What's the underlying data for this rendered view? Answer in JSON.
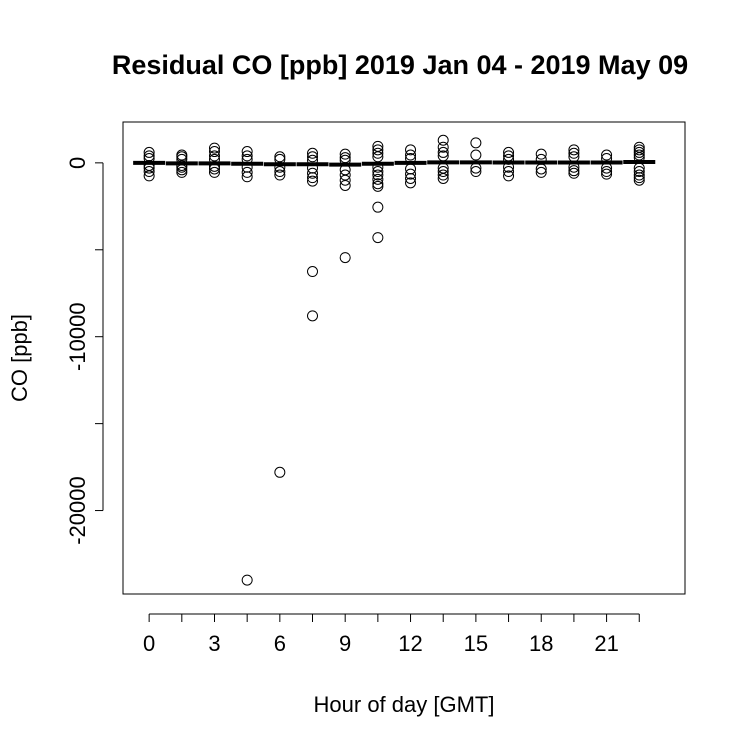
{
  "chart_data": {
    "type": "box",
    "title": "Residual CO [ppb] 2019 Jan 04 - 2019 May 09",
    "xlabel": "Hour of day [GMT]",
    "ylabel": "CO [ppb]",
    "x_tick_labels": [
      "0",
      "3",
      "6",
      "9",
      "12",
      "15",
      "18",
      "21"
    ],
    "x_ticks": [
      0,
      1.5,
      3,
      4.5,
      6,
      7.5,
      9,
      10.5,
      12,
      13.5,
      15,
      16.5,
      18,
      19.5,
      21,
      22.5
    ],
    "y_tick_labels": [
      "0",
      "-10000",
      "-20000"
    ],
    "y_ticks": [
      0,
      -5000,
      -10000,
      -15000,
      -20000
    ],
    "xlim": [
      -1.2,
      24.6
    ],
    "ylim": [
      -24800,
      2350
    ],
    "grid": false,
    "groups": [
      {
        "x": 0,
        "median": 0,
        "points": [
          600,
          400,
          250,
          -150,
          -300,
          -500,
          -750
        ]
      },
      {
        "x": 1.5,
        "median": -30,
        "points": [
          450,
          350,
          200,
          -150,
          -250,
          -400,
          -550
        ]
      },
      {
        "x": 3,
        "median": -30,
        "points": [
          850,
          650,
          400,
          200,
          -200,
          -350,
          -550
        ]
      },
      {
        "x": 4.5,
        "median": -50,
        "points": [
          650,
          400,
          200,
          -250,
          -550,
          -800,
          -24000
        ]
      },
      {
        "x": 6,
        "median": -80,
        "points": [
          350,
          200,
          -250,
          -500,
          -700,
          -17800
        ]
      },
      {
        "x": 7.5,
        "median": -80,
        "points": [
          550,
          350,
          150,
          -300,
          -600,
          -850,
          -1050,
          -6250,
          -8800
        ]
      },
      {
        "x": 9,
        "median": -100,
        "points": [
          500,
          300,
          150,
          -400,
          -700,
          -1000,
          -1300,
          -5450
        ]
      },
      {
        "x": 10.5,
        "median": -50,
        "points": [
          950,
          750,
          550,
          350,
          -250,
          -500,
          -700,
          -950,
          -1200,
          -1350,
          -2550,
          -4300
        ]
      },
      {
        "x": 12,
        "median": 0,
        "points": [
          750,
          450,
          250,
          -350,
          -650,
          -900,
          -1150
        ]
      },
      {
        "x": 13.5,
        "median": 30,
        "points": [
          1300,
          900,
          600,
          400,
          -300,
          -500,
          -700,
          -900
        ]
      },
      {
        "x": 15,
        "median": 30,
        "points": [
          1150,
          450,
          -300,
          -500
        ]
      },
      {
        "x": 16.5,
        "median": 20,
        "points": [
          600,
          400,
          200,
          -250,
          -500,
          -750
        ]
      },
      {
        "x": 18,
        "median": 20,
        "points": [
          500,
          200,
          -350,
          -550
        ]
      },
      {
        "x": 19.5,
        "median": 20,
        "points": [
          750,
          550,
          350,
          -250,
          -450,
          -600
        ]
      },
      {
        "x": 21,
        "median": 20,
        "points": [
          450,
          250,
          -300,
          -500,
          -650
        ]
      },
      {
        "x": 22.5,
        "median": 50,
        "points": [
          900,
          750,
          600,
          450,
          300,
          -300,
          -500,
          -700,
          -850,
          -1000
        ]
      }
    ]
  }
}
